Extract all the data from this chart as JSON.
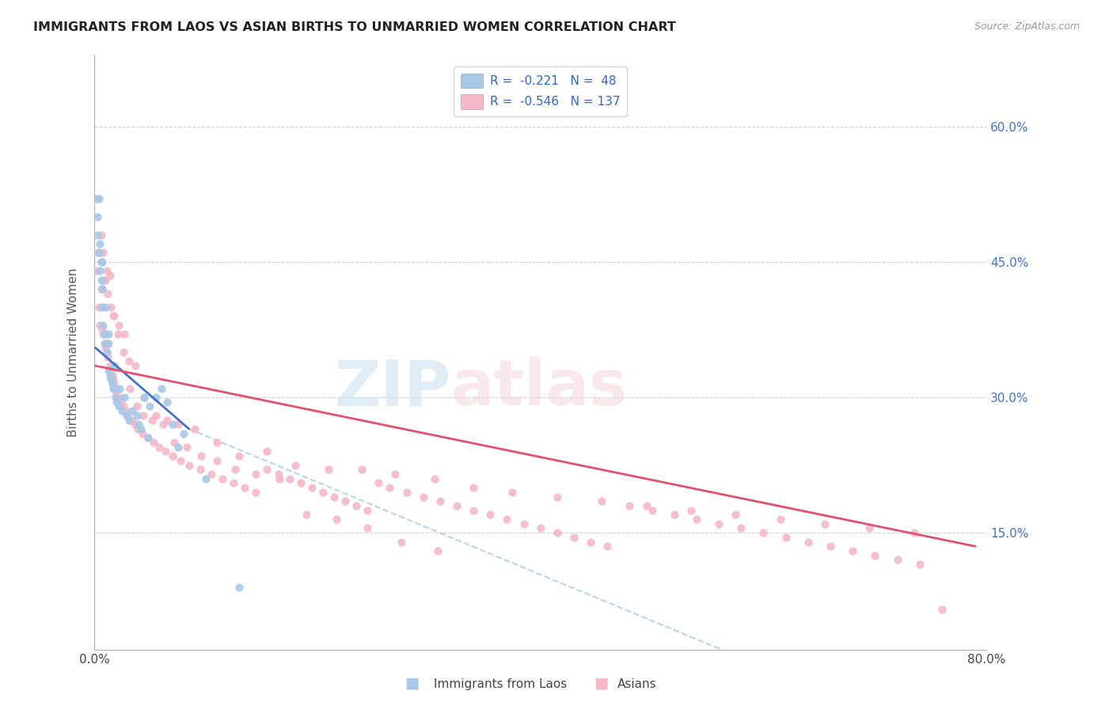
{
  "title": "IMMIGRANTS FROM LAOS VS ASIAN BIRTHS TO UNMARRIED WOMEN CORRELATION CHART",
  "source": "Source: ZipAtlas.com",
  "ylabel": "Births to Unmarried Women",
  "blue_color": "#a8c8e8",
  "pink_color": "#f4b8c8",
  "blue_line_color": "#4472c4",
  "pink_line_color": "#e05070",
  "dashed_line_color": "#a8c8e8",
  "xlim": [
    0.0,
    0.8
  ],
  "ylim": [
    0.02,
    0.68
  ],
  "yticks": [
    0.15,
    0.3,
    0.45,
    0.6
  ],
  "ytick_labels_right": [
    "15.0%",
    "30.0%",
    "45.0%",
    "60.0%"
  ],
  "xticks": [
    0.0,
    0.2,
    0.4,
    0.6,
    0.8
  ],
  "grid_color": "#d0d0d0",
  "blue_line_x": [
    0.001,
    0.085
  ],
  "blue_line_y": [
    0.355,
    0.265
  ],
  "dashed_line_x": [
    0.085,
    0.72
  ],
  "dashed_line_y": [
    0.265,
    -0.06
  ],
  "pink_line_x": [
    0.001,
    0.79
  ],
  "pink_line_y": [
    0.335,
    0.135
  ],
  "blue_dots_x": [
    0.002,
    0.003,
    0.003,
    0.004,
    0.004,
    0.005,
    0.005,
    0.006,
    0.006,
    0.007,
    0.007,
    0.007,
    0.008,
    0.009,
    0.01,
    0.01,
    0.011,
    0.012,
    0.013,
    0.013,
    0.014,
    0.015,
    0.016,
    0.017,
    0.018,
    0.019,
    0.02,
    0.022,
    0.023,
    0.025,
    0.027,
    0.029,
    0.031,
    0.034,
    0.038,
    0.04,
    0.042,
    0.045,
    0.048,
    0.05,
    0.055,
    0.06,
    0.065,
    0.07,
    0.075,
    0.08,
    0.1,
    0.13
  ],
  "blue_dots_y": [
    0.52,
    0.5,
    0.48,
    0.52,
    0.46,
    0.44,
    0.47,
    0.45,
    0.43,
    0.42,
    0.4,
    0.45,
    0.38,
    0.37,
    0.36,
    0.4,
    0.35,
    0.36,
    0.37,
    0.33,
    0.325,
    0.32,
    0.315,
    0.31,
    0.335,
    0.3,
    0.295,
    0.29,
    0.31,
    0.285,
    0.3,
    0.28,
    0.275,
    0.285,
    0.28,
    0.27,
    0.265,
    0.3,
    0.255,
    0.29,
    0.3,
    0.31,
    0.295,
    0.27,
    0.245,
    0.26,
    0.21,
    0.09
  ],
  "pink_dots_x": [
    0.002,
    0.003,
    0.004,
    0.005,
    0.006,
    0.007,
    0.008,
    0.009,
    0.01,
    0.011,
    0.012,
    0.013,
    0.014,
    0.015,
    0.016,
    0.017,
    0.018,
    0.019,
    0.02,
    0.022,
    0.024,
    0.026,
    0.028,
    0.03,
    0.033,
    0.036,
    0.039,
    0.043,
    0.048,
    0.053,
    0.058,
    0.064,
    0.07,
    0.077,
    0.085,
    0.095,
    0.105,
    0.115,
    0.125,
    0.135,
    0.145,
    0.155,
    0.165,
    0.175,
    0.185,
    0.195,
    0.205,
    0.215,
    0.225,
    0.235,
    0.245,
    0.255,
    0.265,
    0.28,
    0.295,
    0.31,
    0.325,
    0.34,
    0.355,
    0.37,
    0.385,
    0.4,
    0.415,
    0.43,
    0.445,
    0.46,
    0.48,
    0.5,
    0.52,
    0.54,
    0.56,
    0.58,
    0.6,
    0.62,
    0.64,
    0.66,
    0.68,
    0.7,
    0.72,
    0.74,
    0.006,
    0.008,
    0.01,
    0.012,
    0.015,
    0.018,
    0.022,
    0.027,
    0.032,
    0.038,
    0.045,
    0.055,
    0.065,
    0.075,
    0.09,
    0.11,
    0.13,
    0.155,
    0.18,
    0.21,
    0.24,
    0.27,
    0.305,
    0.34,
    0.375,
    0.415,
    0.455,
    0.495,
    0.535,
    0.575,
    0.615,
    0.655,
    0.695,
    0.735,
    0.76,
    0.005,
    0.007,
    0.009,
    0.011,
    0.014,
    0.017,
    0.021,
    0.026,
    0.031,
    0.037,
    0.044,
    0.052,
    0.062,
    0.072,
    0.083,
    0.096,
    0.11,
    0.126,
    0.145,
    0.166,
    0.19,
    0.217,
    0.245,
    0.275,
    0.308
  ],
  "pink_dots_y": [
    0.44,
    0.46,
    0.4,
    0.38,
    0.42,
    0.375,
    0.37,
    0.36,
    0.355,
    0.35,
    0.345,
    0.36,
    0.335,
    0.33,
    0.325,
    0.32,
    0.315,
    0.31,
    0.305,
    0.3,
    0.295,
    0.29,
    0.285,
    0.28,
    0.275,
    0.27,
    0.265,
    0.26,
    0.255,
    0.25,
    0.245,
    0.24,
    0.235,
    0.23,
    0.225,
    0.22,
    0.215,
    0.21,
    0.205,
    0.2,
    0.195,
    0.22,
    0.215,
    0.21,
    0.205,
    0.2,
    0.195,
    0.19,
    0.185,
    0.18,
    0.175,
    0.205,
    0.2,
    0.195,
    0.19,
    0.185,
    0.18,
    0.175,
    0.17,
    0.165,
    0.16,
    0.155,
    0.15,
    0.145,
    0.14,
    0.135,
    0.18,
    0.175,
    0.17,
    0.165,
    0.16,
    0.155,
    0.15,
    0.145,
    0.14,
    0.135,
    0.13,
    0.125,
    0.12,
    0.115,
    0.48,
    0.46,
    0.43,
    0.415,
    0.4,
    0.39,
    0.38,
    0.37,
    0.31,
    0.29,
    0.3,
    0.28,
    0.275,
    0.27,
    0.265,
    0.25,
    0.235,
    0.24,
    0.225,
    0.22,
    0.22,
    0.215,
    0.21,
    0.2,
    0.195,
    0.19,
    0.185,
    0.18,
    0.175,
    0.17,
    0.165,
    0.16,
    0.155,
    0.15,
    0.065,
    0.46,
    0.42,
    0.43,
    0.44,
    0.435,
    0.39,
    0.37,
    0.35,
    0.34,
    0.335,
    0.28,
    0.275,
    0.27,
    0.25,
    0.245,
    0.235,
    0.23,
    0.22,
    0.215,
    0.21,
    0.17,
    0.165,
    0.155,
    0.14,
    0.13
  ]
}
